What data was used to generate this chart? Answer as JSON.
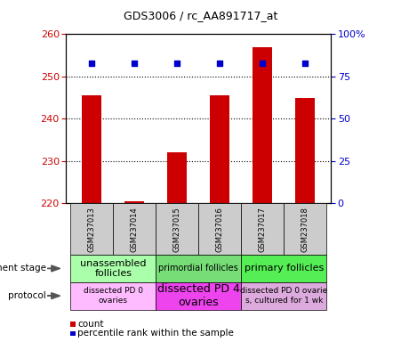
{
  "title": "GDS3006 / rc_AA891717_at",
  "samples": [
    "GSM237013",
    "GSM237014",
    "GSM237015",
    "GSM237016",
    "GSM237017",
    "GSM237018"
  ],
  "counts": [
    245.5,
    220.5,
    232.0,
    245.5,
    257.0,
    245.0
  ],
  "percentile_ranks": [
    83,
    83,
    83,
    83,
    83,
    83
  ],
  "ylim_left": [
    220,
    260
  ],
  "ylim_right": [
    0,
    100
  ],
  "yticks_left": [
    220,
    230,
    240,
    250,
    260
  ],
  "yticks_right": [
    0,
    25,
    50,
    75,
    100
  ],
  "ytick_labels_right": [
    "0",
    "25",
    "50",
    "75",
    "100%"
  ],
  "bar_color": "#cc0000",
  "marker_color": "#0000cc",
  "bar_bottom": 220,
  "dev_stage_groups": [
    {
      "label": "unassembled\nfollicles",
      "start": 0,
      "end": 2,
      "color": "#aaffaa"
    },
    {
      "label": "primordial follicles",
      "start": 2,
      "end": 4,
      "color": "#77dd77"
    },
    {
      "label": "primary follicles",
      "start": 4,
      "end": 6,
      "color": "#55ee55"
    }
  ],
  "protocol_groups": [
    {
      "label": "dissected PD 0\novaries",
      "start": 0,
      "end": 2,
      "color": "#ffbbff"
    },
    {
      "label": "dissected PD 4\novaries",
      "start": 2,
      "end": 4,
      "color": "#ee44ee"
    },
    {
      "label": "dissected PD 0 ovarie\ns, cultured for 1 wk",
      "start": 4,
      "end": 6,
      "color": "#ddaadd"
    }
  ],
  "legend_count_color": "#cc0000",
  "legend_percentile_color": "#0000cc",
  "tick_color_left": "#cc0000",
  "tick_color_right": "#0000cc"
}
